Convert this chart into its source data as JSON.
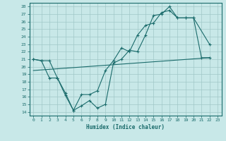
{
  "xlabel": "Humidex (Indice chaleur)",
  "bg_color": "#c8e8e8",
  "grid_color": "#a0c8c8",
  "line_color": "#1a6b6b",
  "xlim": [
    -0.5,
    23.5
  ],
  "ylim": [
    13.5,
    28.5
  ],
  "xticks": [
    0,
    1,
    2,
    3,
    4,
    5,
    6,
    7,
    8,
    9,
    10,
    11,
    12,
    13,
    14,
    15,
    16,
    17,
    18,
    19,
    20,
    21,
    22,
    23
  ],
  "yticks": [
    14,
    15,
    16,
    17,
    18,
    19,
    20,
    21,
    22,
    23,
    24,
    25,
    26,
    27,
    28
  ],
  "line1_x": [
    0,
    1,
    2,
    3,
    4,
    5,
    6,
    7,
    8,
    9,
    10,
    11,
    12,
    13,
    14,
    15,
    16,
    17,
    18,
    19,
    20,
    22
  ],
  "line1_y": [
    21.0,
    20.8,
    20.8,
    18.5,
    16.2,
    14.2,
    16.3,
    16.3,
    16.8,
    19.5,
    20.8,
    22.5,
    22.0,
    24.2,
    25.5,
    25.8,
    27.2,
    27.5,
    26.5,
    26.5,
    26.5,
    23.0
  ],
  "line2_x": [
    0,
    1,
    2,
    3,
    4,
    5,
    6,
    7,
    8,
    9,
    10,
    11,
    12,
    13,
    14,
    15,
    16,
    17,
    18,
    19,
    20,
    21,
    22
  ],
  "line2_y": [
    21.0,
    20.8,
    18.5,
    18.5,
    16.5,
    14.2,
    14.8,
    15.5,
    14.5,
    15.0,
    20.5,
    21.0,
    22.2,
    22.0,
    24.2,
    26.8,
    27.0,
    28.0,
    26.5,
    26.5,
    26.5,
    21.2,
    21.2
  ],
  "line3_x": [
    0,
    22
  ],
  "line3_y": [
    19.5,
    21.2
  ]
}
